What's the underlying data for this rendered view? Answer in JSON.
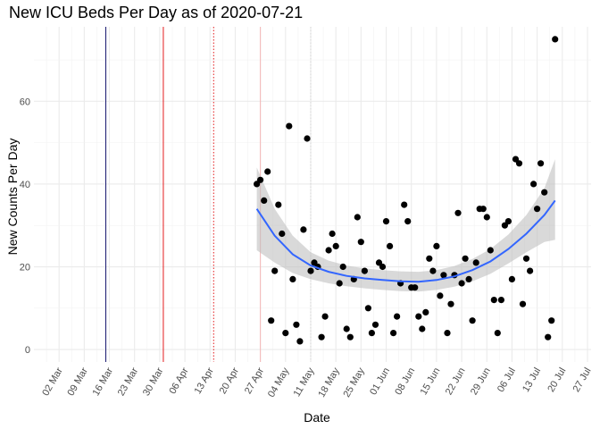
{
  "chart_data": {
    "type": "scatter",
    "title": "New ICU Beds Per Day as of 2020-07-21",
    "xlabel": "Date",
    "ylabel": "New Counts Per Day",
    "x_range": [
      "2020-02-24",
      "2020-07-28"
    ],
    "ylim": [
      -3,
      78
    ],
    "grid": true,
    "legend": "none",
    "x_ticks": [
      "2020-03-02",
      "2020-03-09",
      "2020-03-16",
      "2020-03-23",
      "2020-03-30",
      "2020-04-06",
      "2020-04-13",
      "2020-04-20",
      "2020-04-27",
      "2020-05-04",
      "2020-05-11",
      "2020-05-18",
      "2020-05-25",
      "2020-06-01",
      "2020-06-08",
      "2020-06-15",
      "2020-06-22",
      "2020-06-29",
      "2020-07-06",
      "2020-07-13",
      "2020-07-20",
      "2020-07-27"
    ],
    "x_tick_labels": [
      "02 Mar",
      "09 Mar",
      "16 Mar",
      "23 Mar",
      "30 Mar",
      "06 Apr",
      "13 Apr",
      "20 Apr",
      "27 Apr",
      "04 May",
      "11 May",
      "18 May",
      "25 May",
      "01 Jun",
      "08 Jun",
      "15 Jun",
      "22 Jun",
      "29 Jun",
      "06 Jul",
      "13 Jul",
      "20 Jul",
      "27 Jul"
    ],
    "y_ticks": [
      0,
      20,
      40,
      60
    ],
    "y_tick_labels": [
      "0",
      "20",
      "40",
      "60"
    ],
    "vlines": [
      {
        "date": "2020-03-15",
        "color": "#191970",
        "style": "solid"
      },
      {
        "date": "2020-03-31",
        "color": "#e31a1c",
        "style": "solid"
      },
      {
        "date": "2020-04-14",
        "color": "#e31a1c",
        "style": "dotted"
      },
      {
        "date": "2020-04-27",
        "color": "#f4b6b6",
        "style": "solid"
      },
      {
        "date": "2020-05-11",
        "color": "#d3d3d3",
        "style": "dotted"
      }
    ],
    "points": [
      {
        "x": "2020-04-26",
        "y": 40
      },
      {
        "x": "2020-04-27",
        "y": 41
      },
      {
        "x": "2020-04-28",
        "y": 36
      },
      {
        "x": "2020-04-29",
        "y": 43
      },
      {
        "x": "2020-04-30",
        "y": 7
      },
      {
        "x": "2020-05-01",
        "y": 19
      },
      {
        "x": "2020-05-02",
        "y": 35
      },
      {
        "x": "2020-05-03",
        "y": 28
      },
      {
        "x": "2020-05-04",
        "y": 4
      },
      {
        "x": "2020-05-05",
        "y": 54
      },
      {
        "x": "2020-05-06",
        "y": 17
      },
      {
        "x": "2020-05-07",
        "y": 6
      },
      {
        "x": "2020-05-08",
        "y": 2
      },
      {
        "x": "2020-05-09",
        "y": 29
      },
      {
        "x": "2020-05-10",
        "y": 51
      },
      {
        "x": "2020-05-11",
        "y": 19
      },
      {
        "x": "2020-05-12",
        "y": 21
      },
      {
        "x": "2020-05-13",
        "y": 20
      },
      {
        "x": "2020-05-14",
        "y": 3
      },
      {
        "x": "2020-05-15",
        "y": 8
      },
      {
        "x": "2020-05-16",
        "y": 24
      },
      {
        "x": "2020-05-17",
        "y": 28
      },
      {
        "x": "2020-05-18",
        "y": 25
      },
      {
        "x": "2020-05-19",
        "y": 16
      },
      {
        "x": "2020-05-20",
        "y": 20
      },
      {
        "x": "2020-05-21",
        "y": 5
      },
      {
        "x": "2020-05-22",
        "y": 3
      },
      {
        "x": "2020-05-23",
        "y": 17
      },
      {
        "x": "2020-05-24",
        "y": 32
      },
      {
        "x": "2020-05-25",
        "y": 26
      },
      {
        "x": "2020-05-26",
        "y": 19
      },
      {
        "x": "2020-05-27",
        "y": 10
      },
      {
        "x": "2020-05-28",
        "y": 4
      },
      {
        "x": "2020-05-29",
        "y": 6
      },
      {
        "x": "2020-05-30",
        "y": 21
      },
      {
        "x": "2020-05-31",
        "y": 20
      },
      {
        "x": "2020-06-01",
        "y": 31
      },
      {
        "x": "2020-06-02",
        "y": 25
      },
      {
        "x": "2020-06-03",
        "y": 4
      },
      {
        "x": "2020-06-04",
        "y": 8
      },
      {
        "x": "2020-06-05",
        "y": 16
      },
      {
        "x": "2020-06-06",
        "y": 35
      },
      {
        "x": "2020-06-07",
        "y": 31
      },
      {
        "x": "2020-06-08",
        "y": 15
      },
      {
        "x": "2020-06-09",
        "y": 15
      },
      {
        "x": "2020-06-10",
        "y": 8
      },
      {
        "x": "2020-06-11",
        "y": 5
      },
      {
        "x": "2020-06-12",
        "y": 9
      },
      {
        "x": "2020-06-13",
        "y": 22
      },
      {
        "x": "2020-06-14",
        "y": 19
      },
      {
        "x": "2020-06-15",
        "y": 25
      },
      {
        "x": "2020-06-16",
        "y": 13
      },
      {
        "x": "2020-06-17",
        "y": 18
      },
      {
        "x": "2020-06-18",
        "y": 4
      },
      {
        "x": "2020-06-19",
        "y": 11
      },
      {
        "x": "2020-06-20",
        "y": 18
      },
      {
        "x": "2020-06-21",
        "y": 33
      },
      {
        "x": "2020-06-22",
        "y": 16
      },
      {
        "x": "2020-06-23",
        "y": 22
      },
      {
        "x": "2020-06-24",
        "y": 17
      },
      {
        "x": "2020-06-25",
        "y": 7
      },
      {
        "x": "2020-06-26",
        "y": 21
      },
      {
        "x": "2020-06-27",
        "y": 34
      },
      {
        "x": "2020-06-28",
        "y": 34
      },
      {
        "x": "2020-06-29",
        "y": 32
      },
      {
        "x": "2020-06-30",
        "y": 24
      },
      {
        "x": "2020-07-01",
        "y": 12
      },
      {
        "x": "2020-07-02",
        "y": 4
      },
      {
        "x": "2020-07-03",
        "y": 12
      },
      {
        "x": "2020-07-04",
        "y": 30
      },
      {
        "x": "2020-07-05",
        "y": 31
      },
      {
        "x": "2020-07-06",
        "y": 17
      },
      {
        "x": "2020-07-07",
        "y": 46
      },
      {
        "x": "2020-07-08",
        "y": 45
      },
      {
        "x": "2020-07-09",
        "y": 11
      },
      {
        "x": "2020-07-10",
        "y": 22
      },
      {
        "x": "2020-07-11",
        "y": 19
      },
      {
        "x": "2020-07-12",
        "y": 40
      },
      {
        "x": "2020-07-13",
        "y": 34
      },
      {
        "x": "2020-07-14",
        "y": 45
      },
      {
        "x": "2020-07-15",
        "y": 38
      },
      {
        "x": "2020-07-16",
        "y": 3
      },
      {
        "x": "2020-07-17",
        "y": 7
      },
      {
        "x": "2020-07-18",
        "y": 75
      }
    ],
    "smooth": {
      "method": "loess",
      "color": "#3366ff",
      "band_color": "#bfbfbf",
      "fit": [
        {
          "x": "2020-04-26",
          "y": 34.0,
          "lo": 24.0,
          "hi": 44.0
        },
        {
          "x": "2020-05-01",
          "y": 27.5,
          "lo": 21.0,
          "hi": 34.0
        },
        {
          "x": "2020-05-06",
          "y": 23.0,
          "lo": 18.5,
          "hi": 27.5
        },
        {
          "x": "2020-05-11",
          "y": 20.3,
          "lo": 17.0,
          "hi": 23.5
        },
        {
          "x": "2020-05-16",
          "y": 18.8,
          "lo": 16.0,
          "hi": 21.5
        },
        {
          "x": "2020-05-21",
          "y": 17.8,
          "lo": 15.3,
          "hi": 20.3
        },
        {
          "x": "2020-05-26",
          "y": 17.2,
          "lo": 14.8,
          "hi": 19.6
        },
        {
          "x": "2020-05-31",
          "y": 16.8,
          "lo": 14.4,
          "hi": 19.2
        },
        {
          "x": "2020-06-05",
          "y": 16.5,
          "lo": 14.1,
          "hi": 18.9
        },
        {
          "x": "2020-06-10",
          "y": 16.4,
          "lo": 14.0,
          "hi": 18.8
        },
        {
          "x": "2020-06-15",
          "y": 16.8,
          "lo": 14.4,
          "hi": 19.2
        },
        {
          "x": "2020-06-20",
          "y": 17.7,
          "lo": 15.2,
          "hi": 20.2
        },
        {
          "x": "2020-06-25",
          "y": 19.2,
          "lo": 16.5,
          "hi": 21.9
        },
        {
          "x": "2020-06-30",
          "y": 21.3,
          "lo": 18.3,
          "hi": 24.3
        },
        {
          "x": "2020-07-05",
          "y": 24.3,
          "lo": 20.8,
          "hi": 27.8
        },
        {
          "x": "2020-07-10",
          "y": 28.0,
          "lo": 23.5,
          "hi": 32.5
        },
        {
          "x": "2020-07-15",
          "y": 32.5,
          "lo": 26.0,
          "hi": 39.0
        },
        {
          "x": "2020-07-18",
          "y": 36.0,
          "lo": 26.5,
          "hi": 46.0
        }
      ]
    }
  }
}
